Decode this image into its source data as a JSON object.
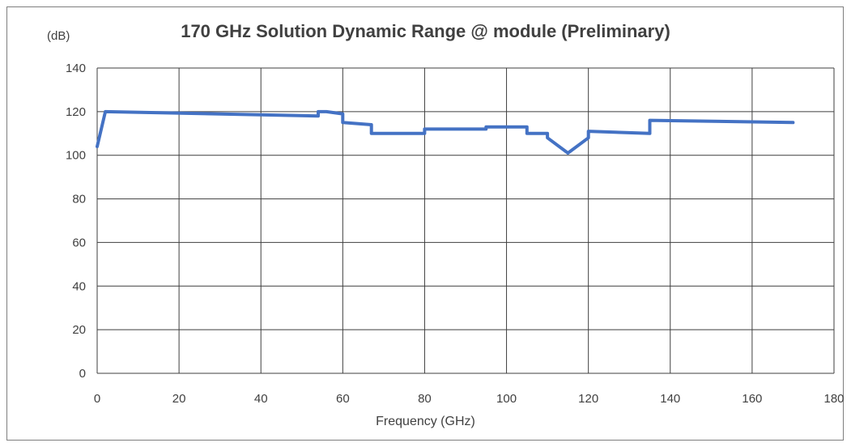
{
  "chart_data": {
    "type": "line",
    "title": "170 GHz Solution Dynamic Range @ module (Preliminary)",
    "ylabel": "(dB)",
    "xlabel": "Frequency  (GHz)",
    "xlim": [
      0,
      180
    ],
    "ylim": [
      0,
      140
    ],
    "xticks": [
      0,
      20,
      40,
      60,
      80,
      100,
      120,
      140,
      160,
      180
    ],
    "yticks": [
      0,
      20,
      40,
      60,
      80,
      100,
      120,
      140
    ],
    "grid": true,
    "series": [
      {
        "color": "#4472c4",
        "points": [
          [
            0,
            104
          ],
          [
            2,
            120
          ],
          [
            54,
            118
          ],
          [
            54,
            120
          ],
          [
            56,
            120
          ],
          [
            60,
            119
          ],
          [
            60,
            115
          ],
          [
            67,
            114
          ],
          [
            67,
            110
          ],
          [
            80,
            110
          ],
          [
            80,
            112
          ],
          [
            95,
            112
          ],
          [
            95,
            113
          ],
          [
            105,
            113
          ],
          [
            105,
            110
          ],
          [
            110,
            110
          ],
          [
            110,
            108
          ],
          [
            115,
            101
          ],
          [
            120,
            108
          ],
          [
            120,
            111
          ],
          [
            135,
            110
          ],
          [
            135,
            116
          ],
          [
            170,
            115
          ]
        ]
      }
    ]
  }
}
